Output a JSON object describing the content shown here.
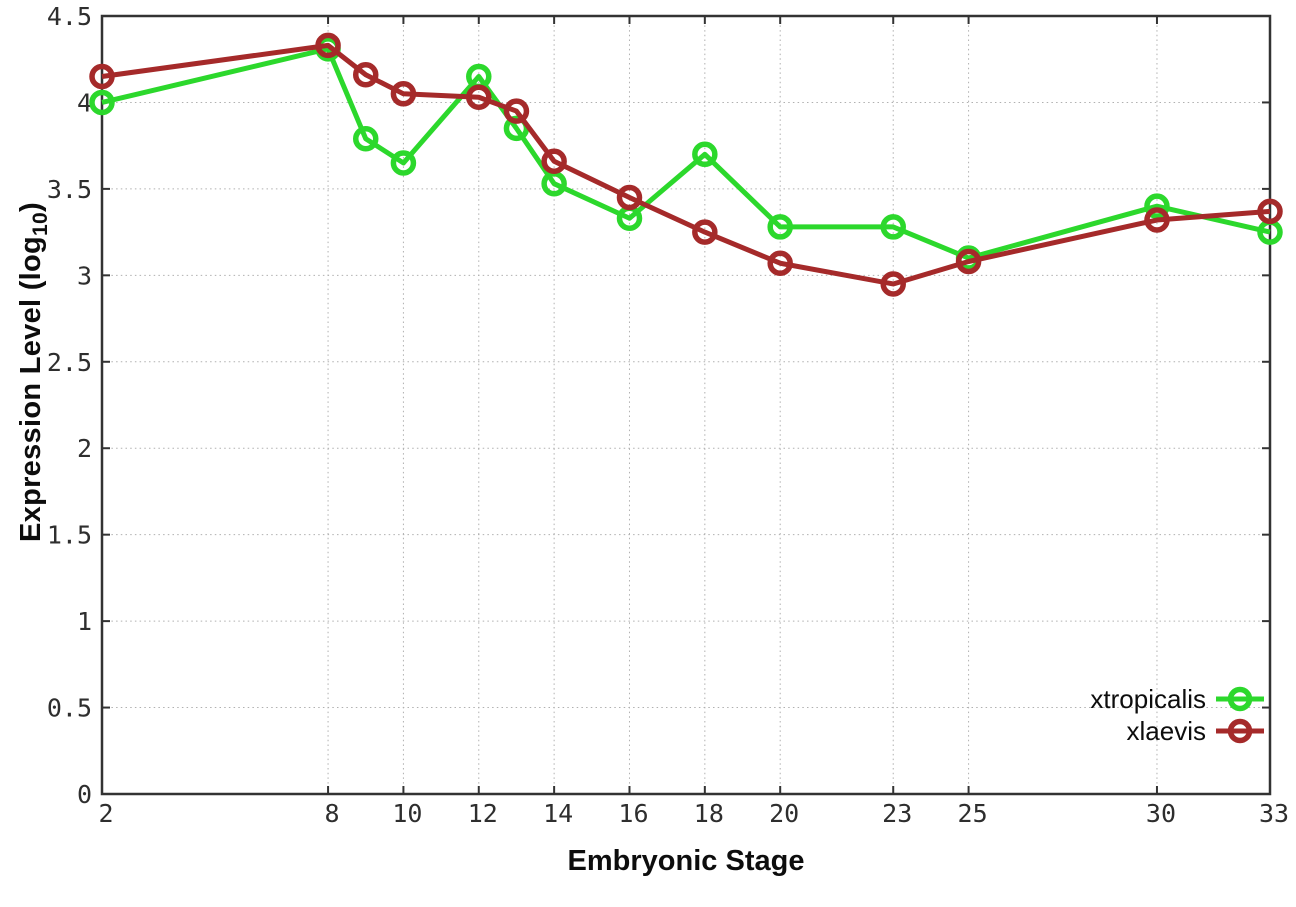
{
  "chart_data": {
    "type": "line",
    "title": "",
    "xlabel": "Embryonic Stage",
    "ylabel": "Expression Level (log10)",
    "ylabel_prefix": "Expression Level (log",
    "ylabel_sub": "10",
    "ylabel_suffix": ")",
    "xlim": [
      2,
      33
    ],
    "ylim": [
      0,
      4.5
    ],
    "x_ticks": [
      2,
      8,
      10,
      12,
      14,
      16,
      18,
      20,
      23,
      25,
      30,
      33
    ],
    "y_ticks": [
      0,
      0.5,
      1,
      1.5,
      2,
      2.5,
      3,
      3.5,
      4,
      4.5
    ],
    "grid": true,
    "legend_position": "bottom-right",
    "x": [
      2,
      8,
      9,
      10,
      12,
      13,
      14,
      16,
      18,
      20,
      23,
      25,
      30,
      33
    ],
    "series": [
      {
        "name": "xtropicalis",
        "color": "#2cd82c",
        "values": [
          4.0,
          4.31,
          3.79,
          3.65,
          4.15,
          3.85,
          3.53,
          3.33,
          3.7,
          3.28,
          3.28,
          3.1,
          3.4,
          3.25
        ]
      },
      {
        "name": "xlaevis",
        "color": "#a52a2a",
        "values": [
          4.15,
          4.33,
          4.16,
          4.05,
          4.03,
          3.95,
          3.66,
          3.45,
          3.25,
          3.07,
          2.95,
          3.08,
          3.32,
          3.37
        ]
      }
    ],
    "colors": {
      "frame": "#333333",
      "grid": "#b0b0b0",
      "tick_text": "#2e2e2e"
    }
  }
}
